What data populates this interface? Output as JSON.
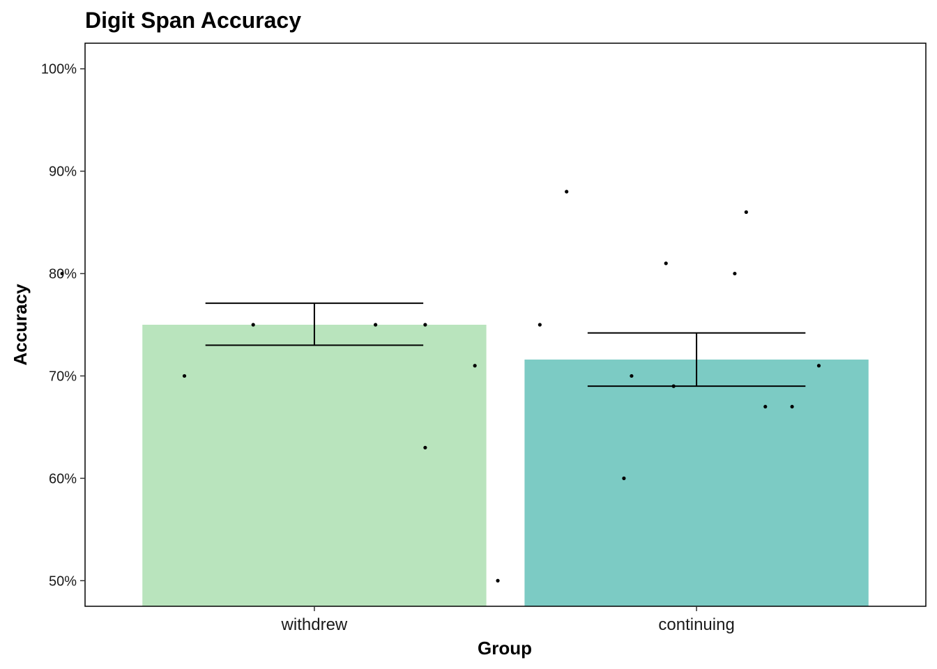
{
  "chart_data": {
    "type": "bar",
    "title": "Digit Span Accuracy",
    "xlabel": "Group",
    "ylabel": "Accuracy",
    "categories": [
      "withdrew",
      "continuing"
    ],
    "values": [
      0.75,
      0.716
    ],
    "error_bars": [
      {
        "low": 0.73,
        "high": 0.771
      },
      {
        "low": 0.69,
        "high": 0.742
      }
    ],
    "ylim": [
      0.475,
      1.025
    ],
    "yticks": [
      0.5,
      0.6,
      0.7,
      0.8,
      0.9,
      1.0
    ],
    "ytick_labels": [
      "50%",
      "60%",
      "70%",
      "80%",
      "90%",
      "100%"
    ],
    "colors": [
      "#B9E4BD",
      "#7CCBC4"
    ],
    "points": [
      {
        "x": 0.34,
        "y": 0.8
      },
      {
        "x": 0.84,
        "y": 0.75
      },
      {
        "x": 1.16,
        "y": 0.75
      },
      {
        "x": 0.66,
        "y": 0.7
      },
      {
        "x": 1.66,
        "y": 0.88
      },
      {
        "x": 2.13,
        "y": 0.86
      },
      {
        "x": 1.92,
        "y": 0.81
      },
      {
        "x": 2.1,
        "y": 0.8
      },
      {
        "x": 1.29,
        "y": 0.75
      },
      {
        "x": 1.59,
        "y": 0.75
      },
      {
        "x": 1.42,
        "y": 0.71
      },
      {
        "x": 2.32,
        "y": 0.71
      },
      {
        "x": 1.83,
        "y": 0.7
      },
      {
        "x": 1.94,
        "y": 0.69
      },
      {
        "x": 2.18,
        "y": 0.67
      },
      {
        "x": 2.25,
        "y": 0.67
      },
      {
        "x": 1.29,
        "y": 0.63
      },
      {
        "x": 1.81,
        "y": 0.6
      },
      {
        "x": 1.48,
        "y": 0.5
      }
    ],
    "grid": false,
    "legend": "none"
  }
}
